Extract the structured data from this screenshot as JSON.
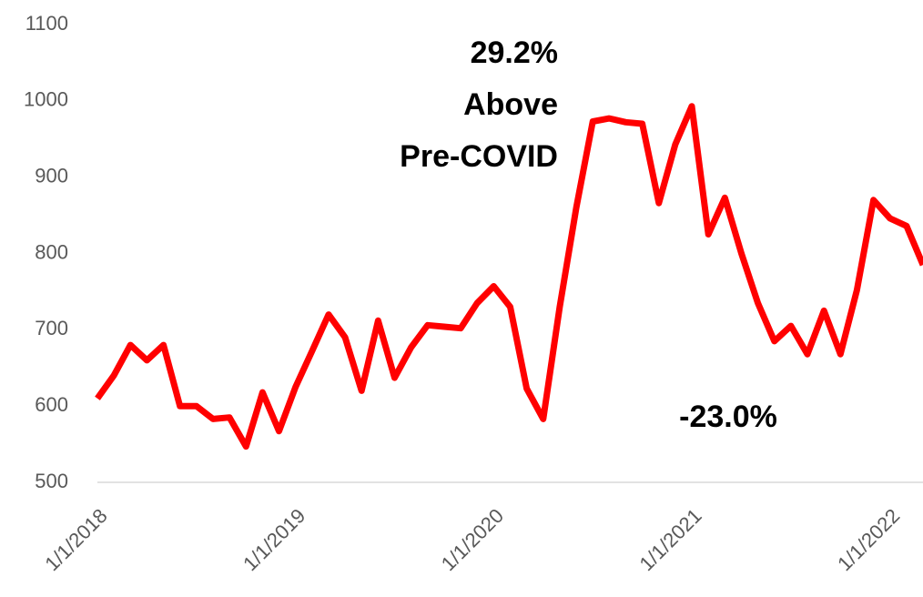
{
  "chart_data": {
    "type": "line",
    "x": [
      "1/1/2018",
      "2/1/2018",
      "3/1/2018",
      "4/1/2018",
      "5/1/2018",
      "6/1/2018",
      "7/1/2018",
      "8/1/2018",
      "9/1/2018",
      "10/1/2018",
      "11/1/2018",
      "12/1/2018",
      "1/1/2019",
      "2/1/2019",
      "3/1/2019",
      "4/1/2019",
      "5/1/2019",
      "6/1/2019",
      "7/1/2019",
      "8/1/2019",
      "9/1/2019",
      "10/1/2019",
      "11/1/2019",
      "12/1/2019",
      "1/1/2020",
      "2/1/2020",
      "3/1/2020",
      "4/1/2020",
      "5/1/2020",
      "6/1/2020",
      "7/1/2020",
      "8/1/2020",
      "9/1/2020",
      "10/1/2020",
      "11/1/2020",
      "12/1/2020",
      "1/1/2021",
      "2/1/2021",
      "3/1/2021",
      "4/1/2021",
      "5/1/2021",
      "6/1/2021",
      "7/1/2021",
      "8/1/2021",
      "9/1/2021",
      "10/1/2021",
      "11/1/2021",
      "12/1/2021",
      "1/1/2022",
      "2/1/2022",
      "3/1/2022"
    ],
    "series": [
      {
        "color": "#ff0000",
        "values": [
          610,
          640,
          680,
          660,
          680,
          600,
          600,
          583,
          585,
          547,
          618,
          567,
          625,
          672,
          720,
          690,
          620,
          712,
          637,
          677,
          706,
          704,
          702,
          735,
          757,
          730,
          623,
          583,
          730,
          860,
          973,
          977,
          972,
          970,
          866,
          943,
          993,
          825,
          873,
          800,
          735,
          685,
          705,
          668,
          725,
          668,
          752,
          870,
          846,
          836,
          785
        ]
      }
    ],
    "xlim": [
      "1/1/2018",
      "3/1/2022"
    ],
    "xticks": [
      "1/1/2018",
      "1/1/2019",
      "1/1/2020",
      "1/1/2021",
      "1/1/2022"
    ],
    "ylim": [
      500,
      1100
    ],
    "yticks": [
      500,
      600,
      700,
      800,
      900,
      1000,
      1100
    ],
    "grid": false,
    "annotations": [
      "29.2%",
      "Above",
      "Pre-COVID",
      "-23.0%"
    ]
  }
}
